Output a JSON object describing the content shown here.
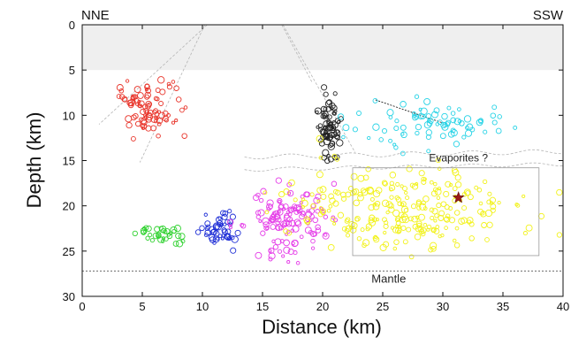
{
  "chart_data": {
    "type": "scatter",
    "title": "",
    "xlabel": "Distance (km)",
    "ylabel": "Depth (km)",
    "xlim": [
      0,
      40
    ],
    "ylim": [
      0,
      30
    ],
    "y_inverted": true,
    "xticks": [
      0,
      5,
      10,
      15,
      20,
      25,
      30,
      35,
      40
    ],
    "yticks": [
      0,
      5,
      10,
      15,
      20,
      25,
      30
    ],
    "grid": false,
    "shaded_layer": {
      "depth_top": 0,
      "depth_bottom": 5,
      "color": "#efefef"
    },
    "annotations": {
      "left_direction": "NNE",
      "right_direction": "SSW",
      "evaporites": {
        "text": "Evaporites ?",
        "x": 31.3,
        "y": 14.7
      },
      "mantle": {
        "text": "Mantle",
        "x": 25.5,
        "y": 28.0,
        "line_depth": 27.2
      }
    },
    "box": {
      "x0": 22.5,
      "x1": 38.0,
      "y0": 15.8,
      "y1": 25.5
    },
    "star": {
      "x": 31.3,
      "y": 19.1,
      "color": "#9c1a1a"
    },
    "series": [
      {
        "color": "#e8342a",
        "cluster": {
          "cx": 5.5,
          "cy": 9.3,
          "sx": 1.3,
          "sy": 1.5,
          "n": 90,
          "seed": 11
        }
      },
      {
        "color": "#222222",
        "cluster": {
          "cx": 20.6,
          "cy": 11.0,
          "sx": 0.45,
          "sy": 1.6,
          "n": 80,
          "seed": 23
        }
      },
      {
        "color": "#27d3e6",
        "cluster": {
          "cx": 29.5,
          "cy": 10.8,
          "sx": 3.2,
          "sy": 1.3,
          "n": 80,
          "seed": 37
        }
      },
      {
        "color": "#2ed12e",
        "cluster": {
          "cx": 6.5,
          "cy": 23.2,
          "sx": 0.9,
          "sy": 0.6,
          "n": 35,
          "seed": 41
        }
      },
      {
        "color": "#1f2fd6",
        "cluster": {
          "cx": 11.4,
          "cy": 22.8,
          "sx": 0.8,
          "sy": 1.1,
          "n": 50,
          "seed": 53
        }
      },
      {
        "color": "#e53de8",
        "cluster": {
          "cx": 17.0,
          "cy": 21.6,
          "sx": 1.6,
          "sy": 1.7,
          "n": 130,
          "seed": 67
        }
      },
      {
        "color": "#f2f21a",
        "cluster": {
          "cx": 27.0,
          "cy": 20.3,
          "sx": 4.8,
          "sy": 2.2,
          "n": 260,
          "seed": 79
        }
      }
    ]
  }
}
